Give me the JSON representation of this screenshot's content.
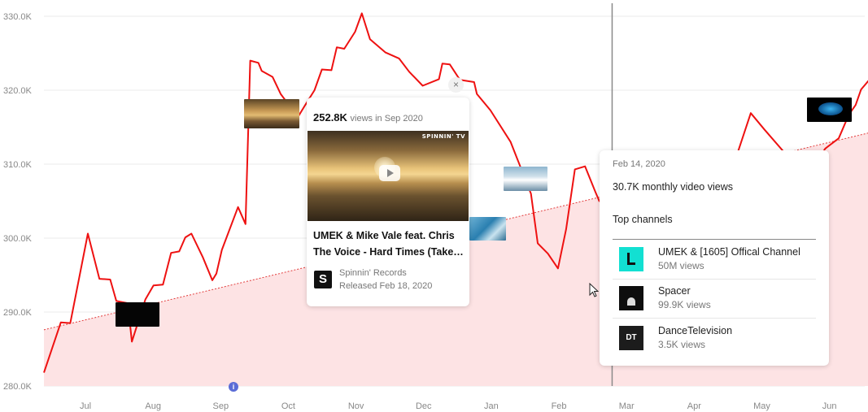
{
  "colors": {
    "line": "#ee1111",
    "trend": "#e23b3b",
    "fill": "#fde3e4",
    "crosshair": "#8a8a8a"
  },
  "chart_data": {
    "type": "line",
    "title": "",
    "xlabel": "",
    "ylabel": "",
    "x_ticks": [
      "Jul",
      "Aug",
      "Sep",
      "Oct",
      "Nov",
      "Dec",
      "Jan",
      "Feb",
      "Mar",
      "Apr",
      "May",
      "Jun"
    ],
    "y_ticks": [
      "280.0K",
      "290.0K",
      "300.0K",
      "310.0K",
      "320.0K",
      "330.0K"
    ],
    "ylim": [
      280000,
      330000
    ],
    "xlim": [
      0,
      12.1
    ],
    "grid": true,
    "series": [
      {
        "name": "Views",
        "points": [
          [
            0.0,
            281.8
          ],
          [
            0.25,
            288.6
          ],
          [
            0.39,
            288.5
          ],
          [
            0.65,
            300.6
          ],
          [
            0.82,
            294.5
          ],
          [
            0.98,
            294.4
          ],
          [
            1.07,
            291.5
          ],
          [
            1.24,
            291.2
          ],
          [
            1.3,
            286.0
          ],
          [
            1.5,
            291.7
          ],
          [
            1.62,
            293.6
          ],
          [
            1.76,
            293.7
          ],
          [
            1.88,
            298.0
          ],
          [
            2.0,
            298.2
          ],
          [
            2.09,
            300.1
          ],
          [
            2.18,
            300.6
          ],
          [
            2.35,
            297.4
          ],
          [
            2.49,
            294.3
          ],
          [
            2.55,
            295.2
          ],
          [
            2.63,
            298.4
          ],
          [
            2.87,
            304.2
          ],
          [
            2.98,
            301.9
          ],
          [
            3.05,
            324.0
          ],
          [
            3.17,
            323.7
          ],
          [
            3.22,
            322.6
          ],
          [
            3.38,
            321.8
          ],
          [
            3.5,
            319.5
          ],
          [
            3.63,
            317.9
          ],
          [
            3.75,
            316.3
          ],
          [
            3.85,
            317.8
          ],
          [
            4.0,
            320.0
          ],
          [
            4.11,
            322.8
          ],
          [
            4.25,
            322.7
          ],
          [
            4.33,
            325.8
          ],
          [
            4.44,
            325.6
          ],
          [
            4.6,
            327.9
          ],
          [
            4.7,
            330.4
          ],
          [
            4.82,
            326.9
          ],
          [
            5.05,
            325.1
          ],
          [
            5.25,
            324.3
          ],
          [
            5.4,
            322.5
          ],
          [
            5.6,
            320.6
          ],
          [
            5.84,
            321.5
          ],
          [
            5.89,
            323.6
          ],
          [
            6.0,
            323.5
          ],
          [
            6.15,
            321.4
          ],
          [
            6.36,
            321.1
          ],
          [
            6.4,
            319.5
          ],
          [
            6.6,
            317.3
          ],
          [
            6.9,
            313.0
          ],
          [
            7.2,
            306.0
          ],
          [
            7.3,
            299.3
          ],
          [
            7.45,
            297.9
          ],
          [
            7.6,
            295.9
          ],
          [
            7.72,
            301.2
          ],
          [
            7.85,
            309.3
          ],
          [
            8.0,
            309.7
          ],
          [
            8.15,
            306.3
          ],
          [
            8.21,
            305.0
          ],
          [
            8.4,
            304.2
          ],
          [
            8.45,
            301.3
          ],
          [
            8.55,
            302.3
          ],
          [
            8.65,
            300.2
          ],
          [
            8.8,
            303.0
          ],
          [
            9.0,
            305.7
          ],
          [
            9.16,
            307.6
          ],
          [
            9.25,
            302.8
          ],
          [
            9.33,
            301.5
          ],
          [
            9.4,
            299.2
          ],
          [
            9.52,
            300.8
          ],
          [
            9.6,
            304.3
          ],
          [
            9.75,
            305.7
          ],
          [
            10.0,
            305.8
          ],
          [
            10.25,
            311.4
          ],
          [
            10.45,
            316.9
          ],
          [
            10.65,
            314.7
          ],
          [
            11.0,
            311.0
          ],
          [
            11.35,
            309.4
          ],
          [
            11.55,
            312.1
          ],
          [
            11.75,
            313.5
          ],
          [
            11.9,
            316.7
          ],
          [
            12.0,
            318.0
          ],
          [
            12.08,
            320.1
          ],
          [
            12.35,
            323.0
          ],
          [
            12.55,
            325.5
          ]
        ]
      }
    ],
    "trendline": {
      "from": [
        0.0,
        287.6
      ],
      "to": [
        12.55,
        315.0
      ]
    },
    "crosshair": {
      "x": 8.4,
      "y": 301.5
    }
  },
  "thumbnails": [
    {
      "name": "thumb-black-1",
      "style": "dark",
      "text": ""
    },
    {
      "name": "thumb-sunset",
      "style": "sunset",
      "text": ""
    },
    {
      "name": "thumb-blue-1",
      "style": "blue",
      "text": ""
    },
    {
      "name": "thumb-sky",
      "style": "sky",
      "text": ""
    },
    {
      "name": "thumb-blue-2",
      "style": "black",
      "text": ""
    }
  ],
  "video_card": {
    "views": "252.8K",
    "views_suffix": "views in Sep 2020",
    "badge": "SPINNIN' TV",
    "title": "UMEK & Mike Vale feat. Chris The Voice - Hard Times (Take It Easy)",
    "channel": "Spinnin' Records",
    "released": "Released Feb 18, 2020",
    "close": "×"
  },
  "info_card": {
    "date": "Feb 14, 2020",
    "monthly": "30.7K monthly video views",
    "top_channels_label": "Top channels",
    "channels": [
      {
        "name": "UMEK & [1605] Offical Channel",
        "views": "50M views"
      },
      {
        "name": "Spacer",
        "views": "99.9K views"
      },
      {
        "name": "DanceTelevision",
        "views": "3.5K views"
      }
    ]
  },
  "annotation_marker": "i"
}
